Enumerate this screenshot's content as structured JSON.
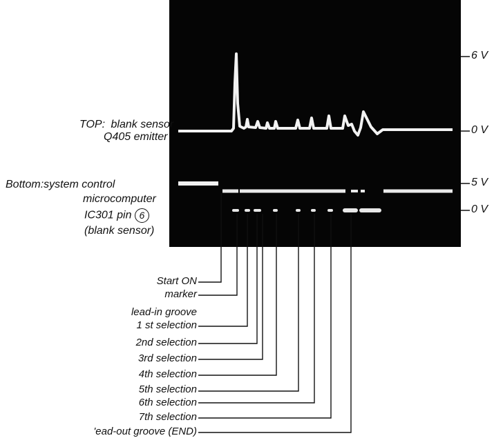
{
  "volt_labels": [
    "6 V",
    "0 V",
    "5 V",
    "0 V"
  ],
  "top_trace": {
    "label_prefix": "TOP:",
    "label_line1": "blank sensor",
    "label_line2": "Q405 emitter"
  },
  "bottom_trace": {
    "label_prefix": "Bottom:",
    "label_line1": "system control",
    "label_line2": "microcomputer",
    "label_line3": "IC301 pin",
    "pin_number": "6",
    "label_line4": "(blank sensor)"
  },
  "callouts": [
    "Start ON",
    "marker",
    "lead-in groove",
    "1 st selection",
    "2nd selection",
    "3rd selection",
    "4th selection",
    "5th selection",
    "6th selection",
    "7th selection",
    "'ead-out groove (END)"
  ]
}
